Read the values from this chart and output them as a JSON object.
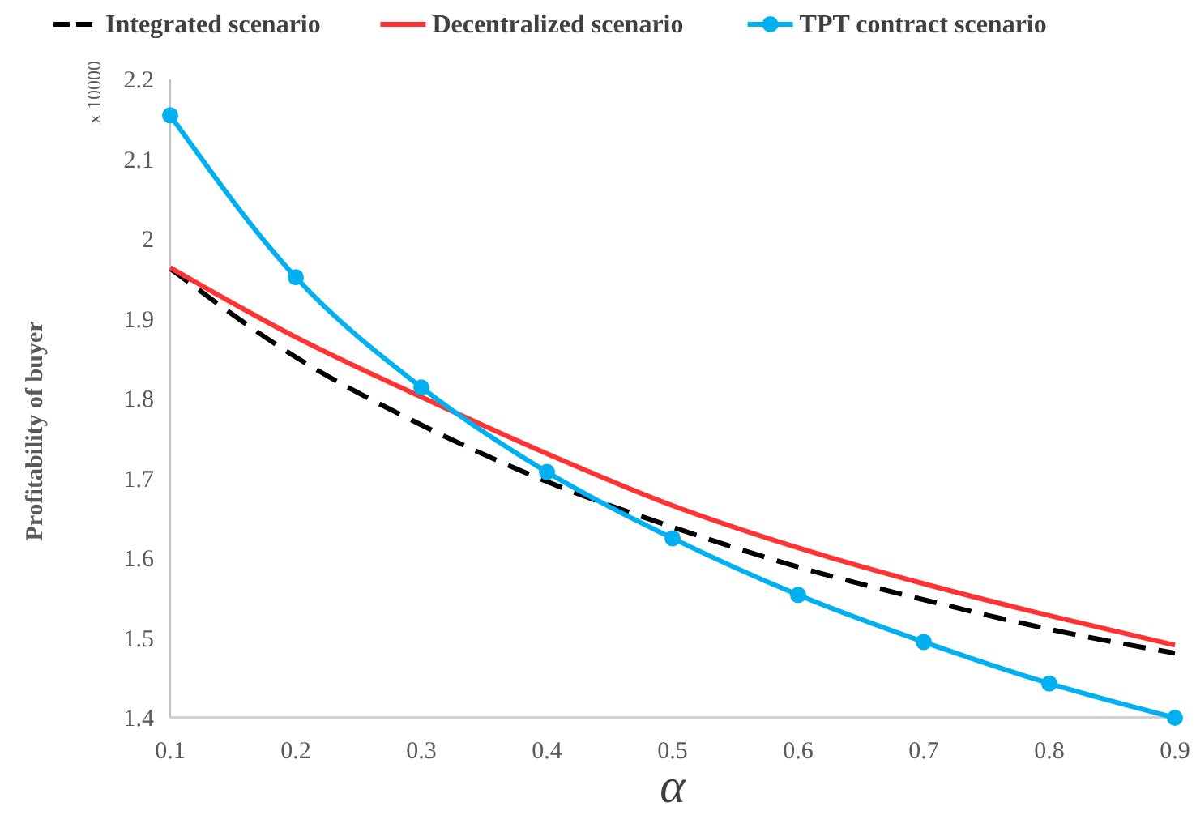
{
  "chart_data": {
    "type": "line",
    "xlabel": "α",
    "ylabel": "Profitability of buyer",
    "annotations": [
      "x 10000"
    ],
    "x": [
      0.1,
      0.2,
      0.3,
      0.4,
      0.5,
      0.6,
      0.7,
      0.8,
      0.9
    ],
    "series": [
      {
        "name": "Integrated scenario",
        "color": "#000000",
        "line_style": "dashed",
        "marker": "none",
        "values": [
          1.963,
          1.852,
          1.767,
          1.696,
          1.639,
          1.589,
          1.548,
          1.511,
          1.481
        ]
      },
      {
        "name": "Decentralized scenario",
        "color": "#ff3333",
        "line_style": "solid",
        "marker": "none",
        "values": [
          1.964,
          1.877,
          1.802,
          1.731,
          1.666,
          1.613,
          1.568,
          1.528,
          1.491
        ]
      },
      {
        "name": "TPT contract scenario",
        "color": "#00b0f0",
        "line_style": "solid",
        "marker": "circle",
        "values": [
          2.155,
          1.952,
          1.814,
          1.708,
          1.625,
          1.554,
          1.495,
          1.443,
          1.4
        ]
      }
    ],
    "xlim": [
      0.1,
      0.9
    ],
    "xticks": [
      0.1,
      0.2,
      0.3,
      0.4,
      0.5,
      0.6,
      0.7,
      0.8,
      0.9
    ],
    "ylim": [
      1.4,
      2.2
    ],
    "yticks": [
      1.4,
      1.5,
      1.6,
      1.7,
      1.8,
      1.9,
      2,
      2.1,
      2.2
    ],
    "grid": false,
    "legend": "top"
  }
}
